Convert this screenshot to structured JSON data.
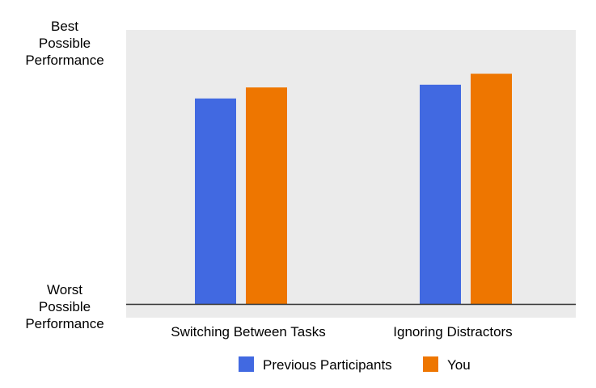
{
  "chart_data": {
    "type": "bar",
    "title": "",
    "xlabel": "",
    "ylabel": "",
    "y_top_label": [
      "Best",
      "Possible",
      "Performance"
    ],
    "y_bottom_label": [
      "Worst",
      "Possible",
      "Performance"
    ],
    "ylim": [
      0,
      100
    ],
    "categories": [
      "Switching Between Tasks",
      "Ignoring Distractors"
    ],
    "series": [
      {
        "name": "Previous Participants",
        "color": "#4169e1",
        "values": [
          75,
          80
        ]
      },
      {
        "name": "You",
        "color": "#ee7600",
        "values": [
          79,
          84
        ]
      }
    ],
    "plot_background": "#ebebeb",
    "grid": false,
    "legend_position": "bottom"
  }
}
